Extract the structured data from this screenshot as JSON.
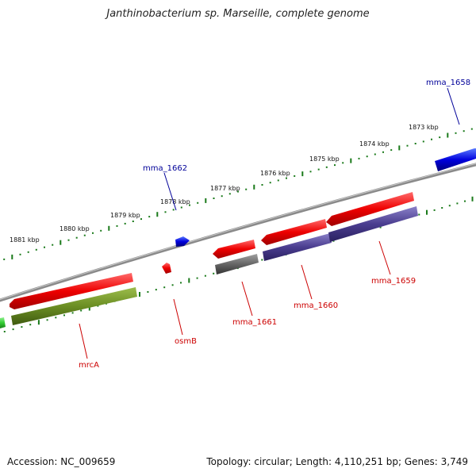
{
  "title": "Janthinobacterium sp. Marseille, complete genome",
  "footer": {
    "accession": "Accession: NC_009659",
    "summary": "Topology: circular; Length: 4,110,251 bp; Genes: 3,749"
  },
  "colors": {
    "backbone": "#8a8a8a",
    "tick": "#1a7a1a",
    "forward_gene": "#0000dd",
    "reverse_gene": "#ee0000",
    "gene_label_forward": "#000099",
    "gene_label_reverse": "#cc0000",
    "feature_olive": "#6b8e23",
    "feature_grey": "#666666",
    "feature_purple": "#4a3d8f",
    "feature_green": "#33cc33"
  },
  "scale": {
    "unit": "kbp",
    "labels": [
      "1881 kbp",
      "1880 kbp",
      "1879 kbp",
      "1878 kbp",
      "1877 kbp",
      "1876 kbp",
      "1875 kbp",
      "1874 kbp",
      "1873 kbp"
    ]
  },
  "genes": {
    "forward": [
      "mma_1662",
      "mma_1658"
    ],
    "reverse": [
      "mrcA",
      "osmB",
      "mma_1661",
      "mma_1660",
      "mma_1659"
    ]
  }
}
